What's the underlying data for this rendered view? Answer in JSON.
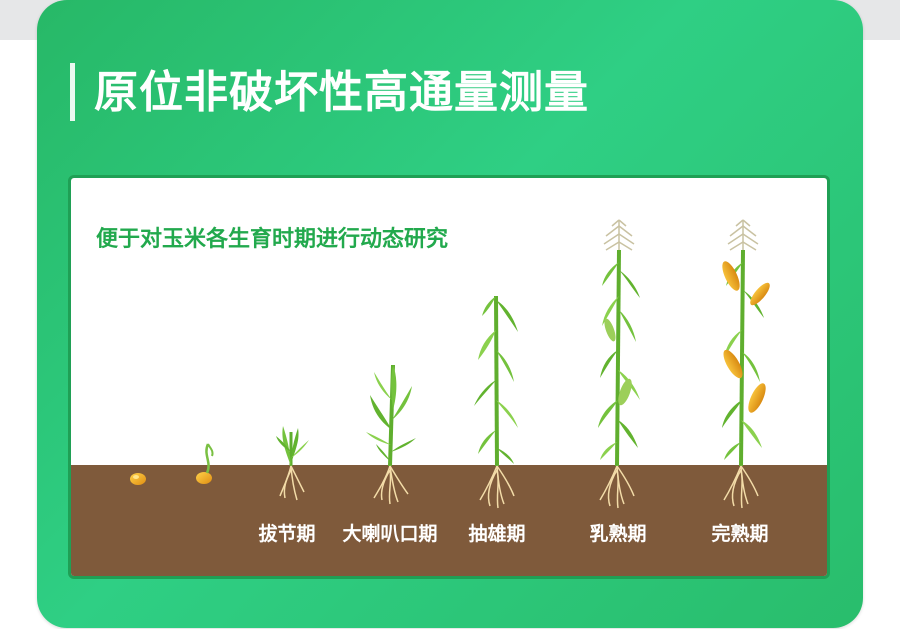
{
  "title": "原位非破坏性高通量测量",
  "subtitle": "便于对玉米各生育时期进行动态研究",
  "stages": [
    {
      "label": ""
    },
    {
      "label": ""
    },
    {
      "label": "拔节期"
    },
    {
      "label": "大喇叭口期"
    },
    {
      "label": "抽雄期"
    },
    {
      "label": "乳熟期"
    },
    {
      "label": "完熟期"
    }
  ],
  "icons": [
    "corn-seed-icon",
    "sprouting-seed-icon",
    "corn-plant-icon",
    "tassel-icon",
    "corn-ear-icon",
    "roots-icon"
  ],
  "colors": {
    "card_gradient_start": "#27b867",
    "card_gradient_end": "#29bd6c",
    "accent_green": "#22a94d",
    "soil": "#7f5a3b",
    "leaf": "#62b32f",
    "ear": "#f0a81c"
  }
}
